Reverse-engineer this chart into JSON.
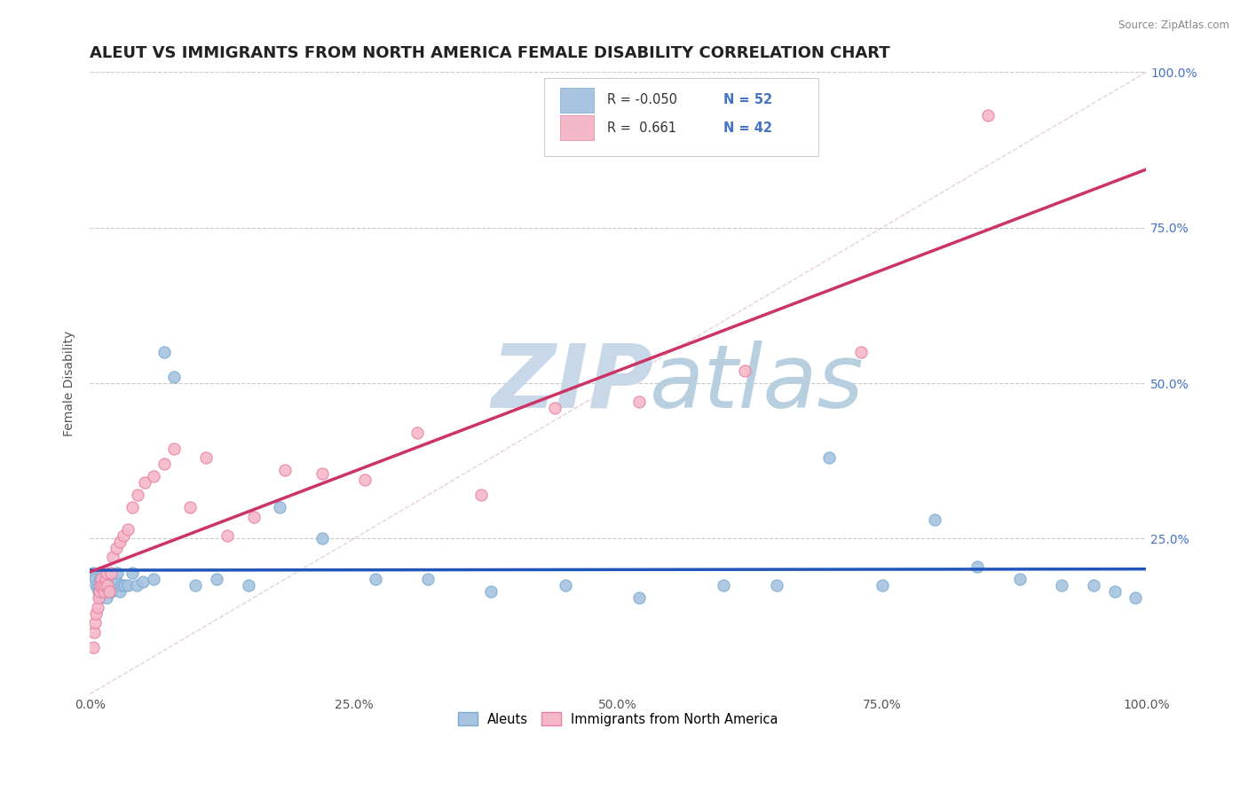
{
  "title": "ALEUT VS IMMIGRANTS FROM NORTH AMERICA FEMALE DISABILITY CORRELATION CHART",
  "source": "Source: ZipAtlas.com",
  "xlabel": "",
  "ylabel": "Female Disability",
  "xlim": [
    0.0,
    1.0
  ],
  "ylim": [
    0.0,
    1.0
  ],
  "xtick_labels": [
    "0.0%",
    "25.0%",
    "50.0%",
    "75.0%",
    "100.0%"
  ],
  "xtick_vals": [
    0.0,
    0.25,
    0.5,
    0.75,
    1.0
  ],
  "ytick_vals": [
    0.25,
    0.5,
    0.75,
    1.0
  ],
  "right_ytick_labels": [
    "25.0%",
    "50.0%",
    "75.0%",
    "100.0%"
  ],
  "right_ytick_vals": [
    0.25,
    0.5,
    0.75,
    1.0
  ],
  "legend_R1": "-0.050",
  "legend_N1": "52",
  "legend_R2": "0.661",
  "legend_N2": "42",
  "color_aleut": "#a8c4e0",
  "color_immigrant": "#f4b8c8",
  "scatter_edge_aleut": "#7aabcf",
  "scatter_edge_immigrant": "#e87fa0",
  "trendline_color_aleut": "#2255bb",
  "trendline_color_immigrant": "#cc3366",
  "diagonal_color": "#cccccc",
  "background_color": "#ffffff",
  "watermark_zip": "ZIP",
  "watermark_atlas": "atlas",
  "watermark_color_zip": "#c8d8e8",
  "watermark_color_atlas": "#b8cfe0",
  "title_fontsize": 13,
  "axis_label_fontsize": 10,
  "tick_fontsize": 10,
  "legend_label1": "Aleuts",
  "legend_label2": "Immigrants from North America",
  "aleut_x": [
    0.003,
    0.004,
    0.005,
    0.006,
    0.007,
    0.008,
    0.009,
    0.01,
    0.011,
    0.012,
    0.013,
    0.014,
    0.015,
    0.016,
    0.017,
    0.018,
    0.019,
    0.02,
    0.022,
    0.024,
    0.026,
    0.028,
    0.03,
    0.033,
    0.036,
    0.04,
    0.044,
    0.05,
    0.06,
    0.07,
    0.08,
    0.1,
    0.12,
    0.15,
    0.18,
    0.22,
    0.27,
    0.32,
    0.38,
    0.45,
    0.52,
    0.6,
    0.65,
    0.7,
    0.75,
    0.8,
    0.84,
    0.88,
    0.92,
    0.95,
    0.97,
    0.99
  ],
  "aleut_y": [
    0.195,
    0.19,
    0.185,
    0.175,
    0.17,
    0.165,
    0.155,
    0.185,
    0.19,
    0.18,
    0.175,
    0.165,
    0.17,
    0.155,
    0.175,
    0.185,
    0.165,
    0.165,
    0.175,
    0.185,
    0.195,
    0.165,
    0.175,
    0.175,
    0.175,
    0.195,
    0.175,
    0.18,
    0.185,
    0.55,
    0.51,
    0.175,
    0.185,
    0.175,
    0.3,
    0.25,
    0.185,
    0.185,
    0.165,
    0.175,
    0.155,
    0.175,
    0.175,
    0.38,
    0.175,
    0.28,
    0.205,
    0.185,
    0.175,
    0.175,
    0.165,
    0.155
  ],
  "immigrant_x": [
    0.003,
    0.004,
    0.005,
    0.006,
    0.007,
    0.008,
    0.009,
    0.01,
    0.011,
    0.012,
    0.013,
    0.014,
    0.015,
    0.016,
    0.017,
    0.018,
    0.02,
    0.022,
    0.025,
    0.028,
    0.032,
    0.036,
    0.04,
    0.045,
    0.052,
    0.06,
    0.07,
    0.08,
    0.095,
    0.11,
    0.13,
    0.155,
    0.185,
    0.22,
    0.26,
    0.31,
    0.37,
    0.44,
    0.52,
    0.62,
    0.73,
    0.85
  ],
  "immigrant_y": [
    0.075,
    0.1,
    0.115,
    0.13,
    0.14,
    0.155,
    0.165,
    0.175,
    0.185,
    0.175,
    0.165,
    0.175,
    0.185,
    0.195,
    0.175,
    0.165,
    0.195,
    0.22,
    0.235,
    0.245,
    0.255,
    0.265,
    0.3,
    0.32,
    0.34,
    0.35,
    0.37,
    0.395,
    0.3,
    0.38,
    0.255,
    0.285,
    0.36,
    0.355,
    0.345,
    0.42,
    0.32,
    0.46,
    0.47,
    0.52,
    0.55,
    0.93
  ]
}
